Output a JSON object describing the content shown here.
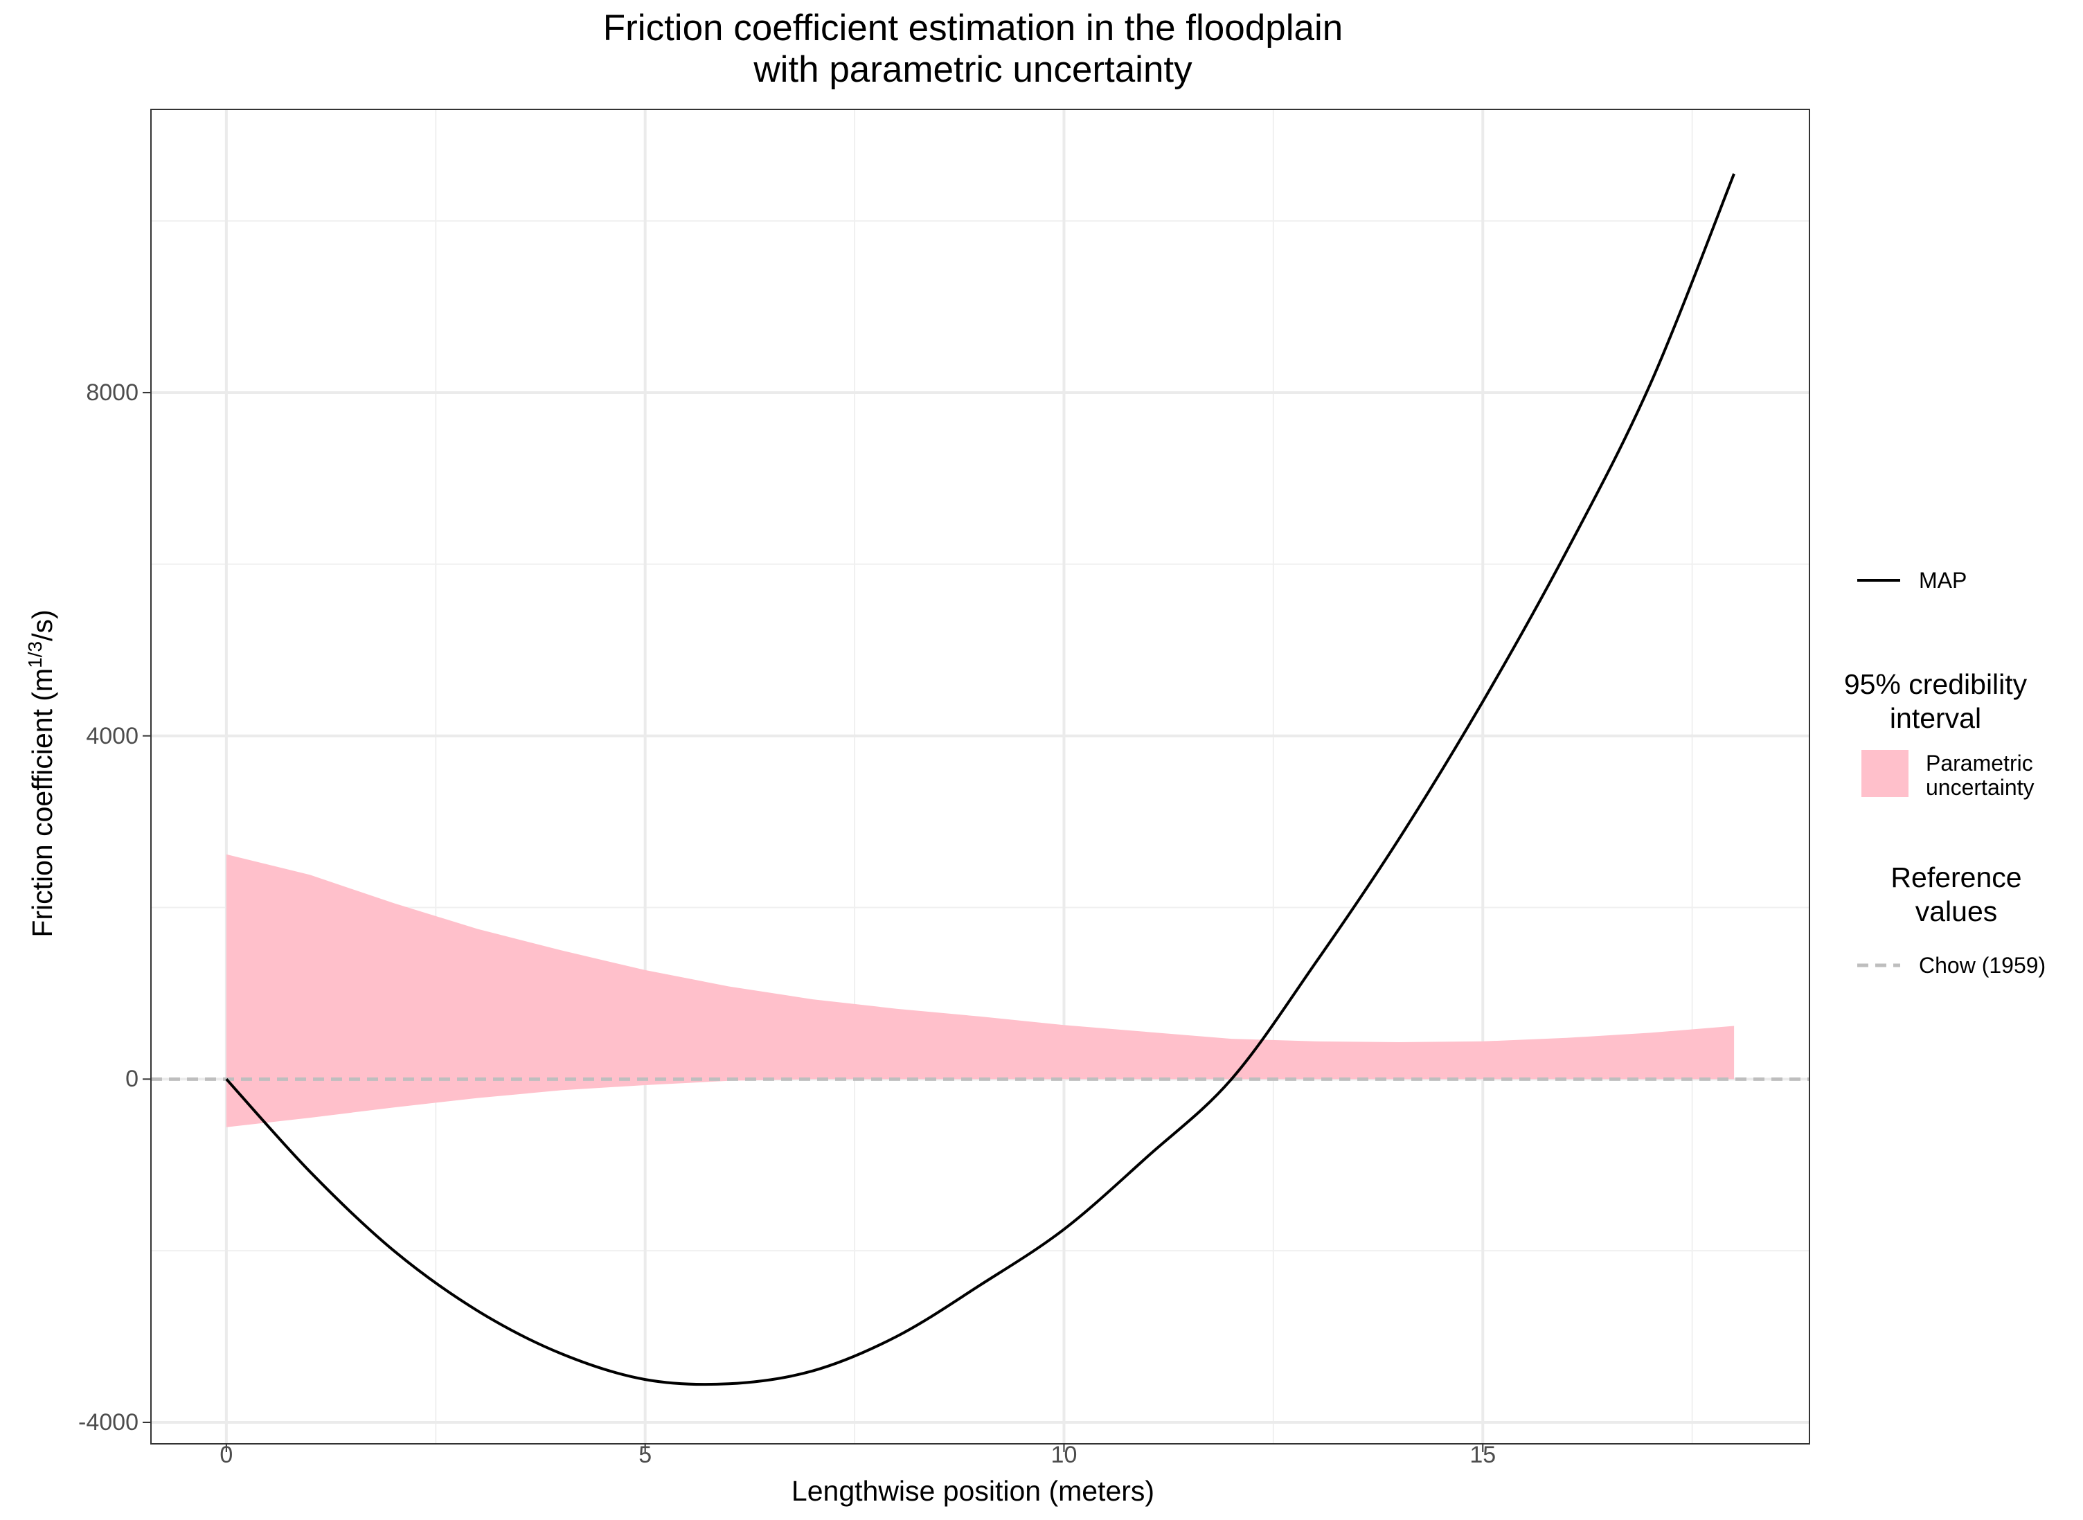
{
  "chart_data": {
    "type": "line",
    "title_lines": [
      "Friction coefficient estimation in the floodplain",
      "with parametric uncertainty"
    ],
    "xlabel": "Lengthwise position (meters)",
    "ylabel_base": "Friction coefficient (m",
    "ylabel_sup": "1/3",
    "ylabel_tail": "/s)",
    "xlim": [
      -0.9,
      18.9
    ],
    "ylim": [
      -4250,
      11300
    ],
    "x_ticks": [
      0,
      5,
      10,
      15
    ],
    "x_tick_labels": [
      "0",
      "5",
      "10",
      "15"
    ],
    "y_ticks": [
      -4000,
      0,
      4000,
      8000
    ],
    "y_tick_labels": [
      "-4000",
      "0",
      "4000",
      "8000"
    ],
    "grid": true,
    "legend_position": "right",
    "series": [
      {
        "name": "MAP",
        "kind": "line",
        "color": "#000000",
        "x": [
          0,
          1,
          2,
          3,
          4,
          5,
          6,
          7,
          8,
          9,
          10,
          11,
          12,
          13,
          14,
          15,
          16,
          17,
          18
        ],
        "y": [
          0,
          -1080,
          -2000,
          -2700,
          -3200,
          -3500,
          -3550,
          -3400,
          -3000,
          -2400,
          -1750,
          -900,
          0,
          1350,
          2800,
          4400,
          6150,
          8100,
          10550
        ]
      }
    ],
    "band": {
      "legend_title_lines": [
        "95% credibility",
        "interval"
      ],
      "name_lines": [
        "Parametric",
        "uncertainty"
      ],
      "color": "#ffc0cb",
      "x": [
        0,
        1,
        2,
        3,
        4,
        5,
        6,
        7,
        8,
        9,
        10,
        11,
        12,
        13,
        14,
        15,
        16,
        17,
        18
      ],
      "upper": [
        2620,
        2380,
        2050,
        1750,
        1500,
        1270,
        1080,
        930,
        820,
        730,
        630,
        550,
        470,
        440,
        430,
        440,
        480,
        540,
        620
      ],
      "lower": [
        -560,
        -450,
        -330,
        -220,
        -130,
        -70,
        -20,
        0,
        0,
        0,
        0,
        0,
        0,
        0,
        0,
        0,
        0,
        0,
        0
      ]
    },
    "reference": {
      "legend_title_lines": [
        "Reference",
        "values"
      ],
      "name": "Chow (1959)",
      "value": 0,
      "color": "#bebebe",
      "style": "dashed"
    }
  }
}
